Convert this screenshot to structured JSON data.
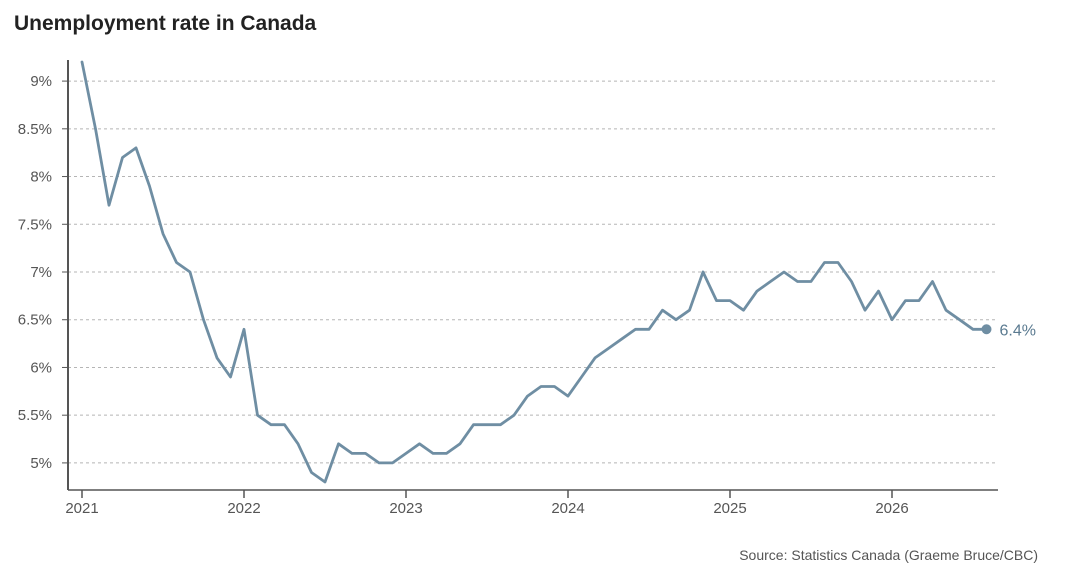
{
  "chart_data": {
    "type": "line",
    "title": "Unemployment rate in Canada",
    "source": "Source: Statistics Canada (Graeme Bruce/CBC)",
    "xlabel": "",
    "ylabel": "",
    "x_ticks": [
      "2021",
      "2022",
      "2023",
      "2024",
      "2025",
      "2026"
    ],
    "y_ticks": [
      "5%",
      "5.5%",
      "6%",
      "6.5%",
      "7%",
      "7.5%",
      "8%",
      "8.5%",
      "9%"
    ],
    "ylim": [
      4.8,
      9.2
    ],
    "xlim": [
      "2021-01",
      "2026-08"
    ],
    "grid": true,
    "line_color": "#6f8ea3",
    "end_label": "6.4%",
    "series": [
      {
        "x": [
          "2021-01",
          "2021-02",
          "2021-03",
          "2021-04",
          "2021-05",
          "2021-06",
          "2021-07",
          "2021-08",
          "2021-09",
          "2021-10",
          "2021-11",
          "2021-12",
          "2022-01",
          "2022-02",
          "2022-03",
          "2022-04",
          "2022-05",
          "2022-06",
          "2022-07",
          "2022-08",
          "2022-09",
          "2022-10",
          "2022-11",
          "2022-12",
          "2023-01",
          "2023-02",
          "2023-03",
          "2023-04",
          "2023-05",
          "2023-06",
          "2023-07",
          "2023-08",
          "2023-09",
          "2023-10",
          "2023-11",
          "2023-12",
          "2024-01",
          "2024-02",
          "2024-03",
          "2024-04",
          "2024-05",
          "2024-06",
          "2024-07",
          "2024-08",
          "2024-09",
          "2024-10",
          "2024-11",
          "2024-12",
          "2025-01",
          "2025-02",
          "2025-03",
          "2025-04",
          "2025-05",
          "2025-06",
          "2025-07",
          "2025-08",
          "2025-09",
          "2025-10",
          "2025-11",
          "2025-12",
          "2026-01",
          "2026-02",
          "2026-03",
          "2026-04",
          "2026-05",
          "2026-06",
          "2026-07",
          "2026-08"
        ],
        "values": [
          9.2,
          8.5,
          7.7,
          8.2,
          8.3,
          7.9,
          7.4,
          7.1,
          7.0,
          6.5,
          6.1,
          5.9,
          6.4,
          5.5,
          5.4,
          5.4,
          5.2,
          4.9,
          4.8,
          5.2,
          5.1,
          5.1,
          5.0,
          5.0,
          5.1,
          5.2,
          5.1,
          5.1,
          5.2,
          5.4,
          5.4,
          5.4,
          5.5,
          5.7,
          5.8,
          5.8,
          5.7,
          5.9,
          6.1,
          6.2,
          6.3,
          6.4,
          6.4,
          6.6,
          6.5,
          6.6,
          7.0,
          6.7,
          6.7,
          6.6,
          6.8,
          6.9,
          7.0,
          6.9,
          6.9,
          7.1,
          7.1,
          6.9,
          6.6,
          6.8,
          6.5,
          6.7,
          6.7,
          6.9,
          6.6,
          6.5,
          6.4,
          6.4
        ]
      }
    ]
  }
}
